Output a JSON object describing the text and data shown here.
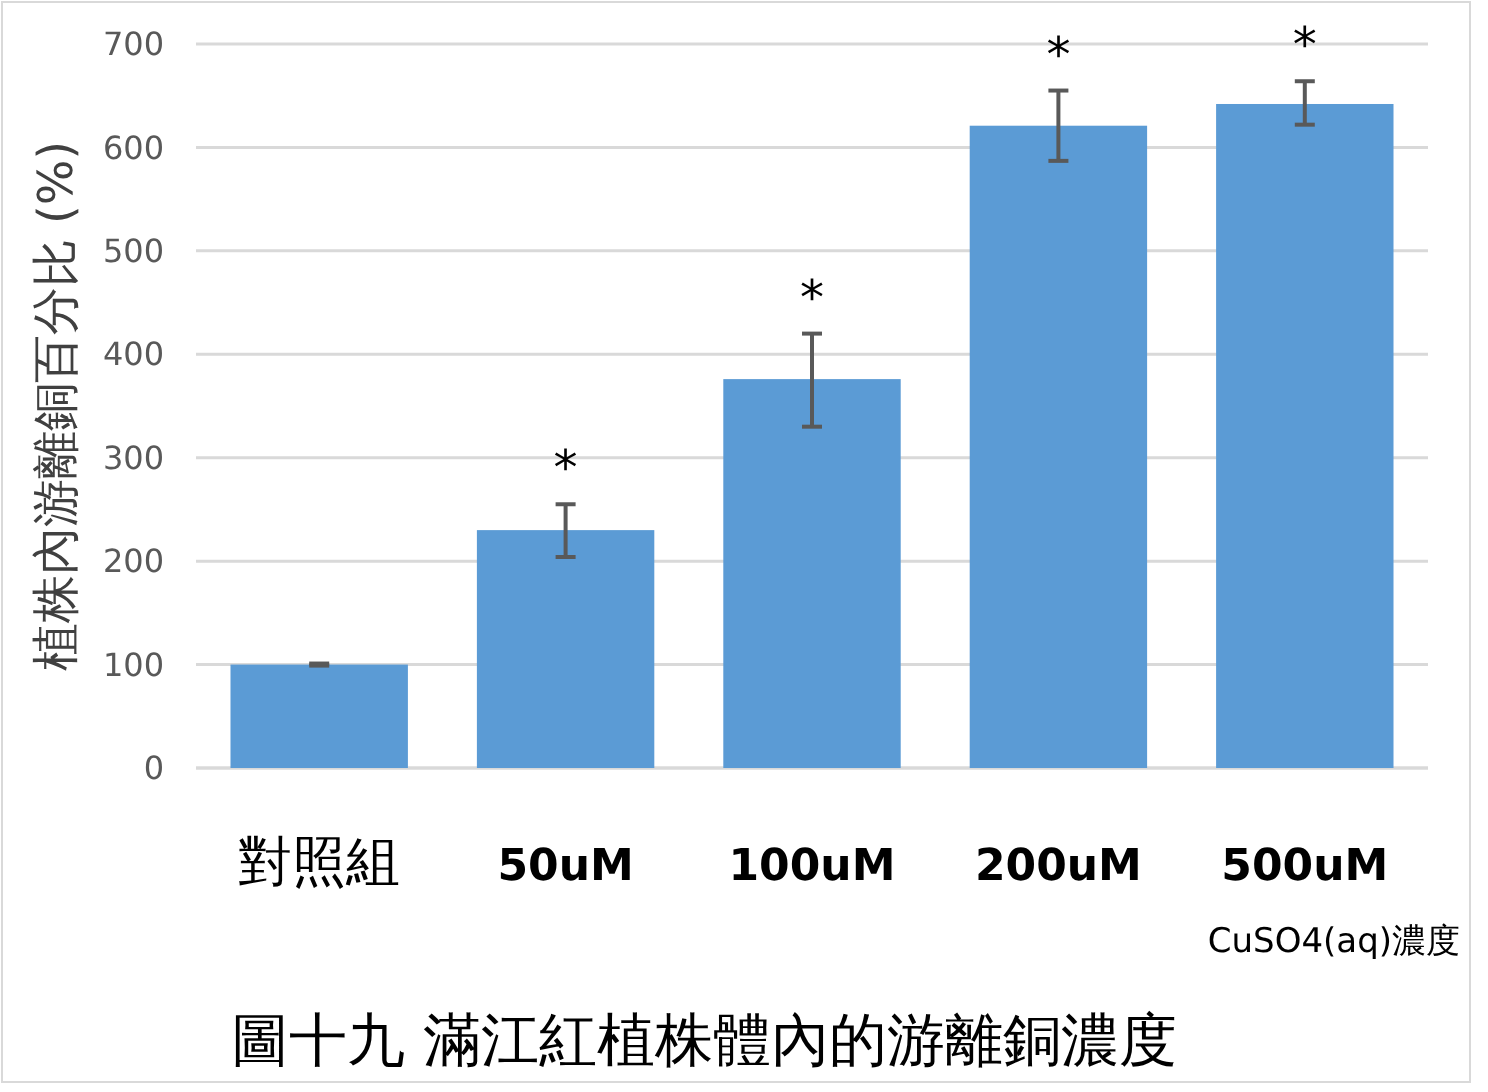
{
  "chart_data": {
    "type": "bar",
    "title": "圖十九 滿江紅植株體內的游離銅濃度",
    "xlabel": "CuSO4(aq)濃度",
    "ylabel": "植株內游離銅百分比 (%)",
    "categories": [
      "對照組",
      "50uM",
      "100uM",
      "200uM",
      "500uM"
    ],
    "values": [
      100,
      230,
      376,
      621,
      642
    ],
    "color": "#5b9bd5",
    "errors": [
      [
        99,
        101
      ],
      [
        204,
        255
      ],
      [
        330,
        420
      ],
      [
        587,
        655
      ],
      [
        622,
        664
      ]
    ],
    "annotations": [
      "*",
      "*",
      "*",
      "*"
    ],
    "ylim": [
      0,
      700
    ],
    "yticks": [
      0,
      100,
      200,
      300,
      400,
      500,
      600,
      700
    ],
    "grid": "y"
  }
}
